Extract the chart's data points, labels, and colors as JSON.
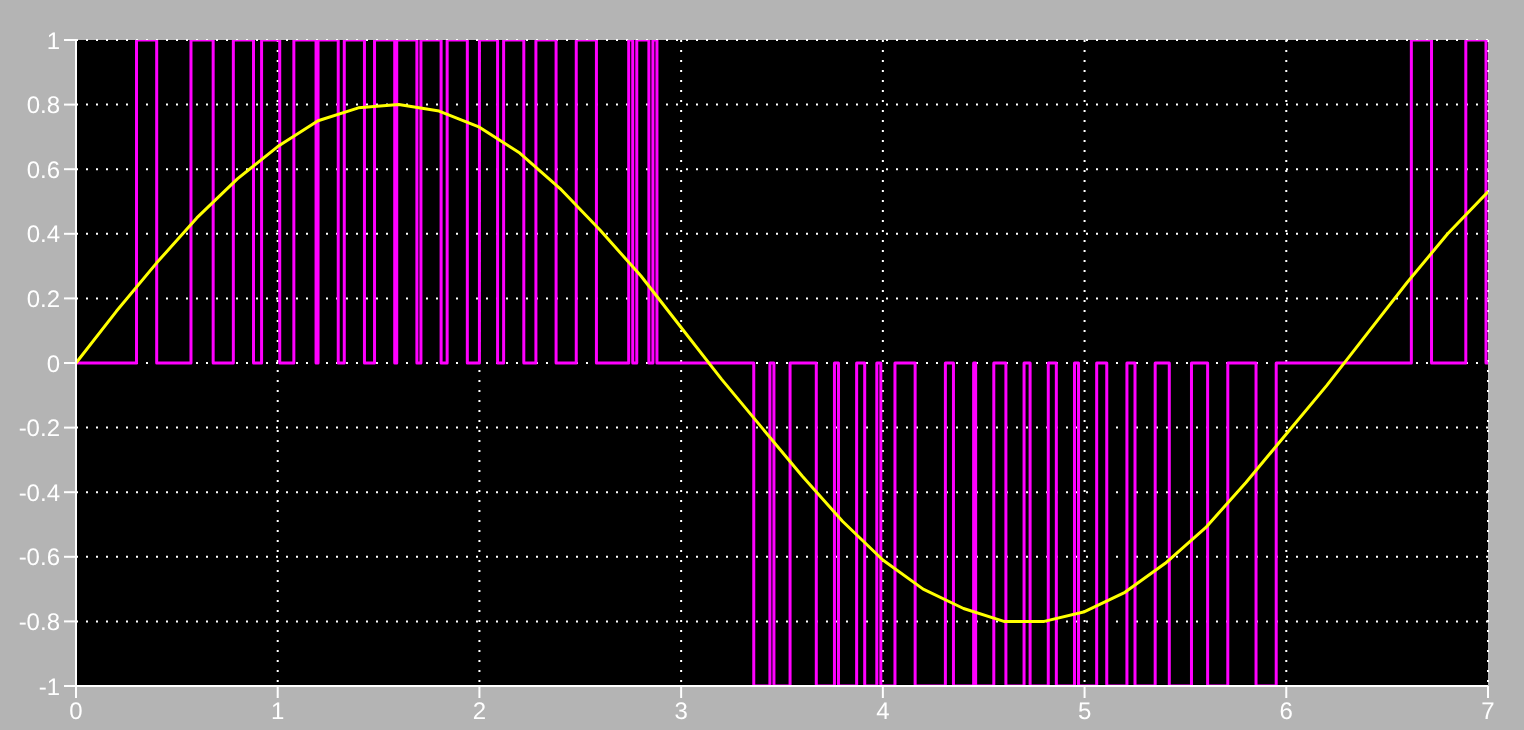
{
  "chart_data": {
    "type": "line",
    "xlim": [
      0,
      7
    ],
    "xticks": [
      0,
      1,
      2,
      3,
      4,
      5,
      6,
      7
    ],
    "ylim": [
      -1,
      1
    ],
    "yticks": [
      -1,
      -0.8,
      -0.6,
      -0.4,
      -0.2,
      0,
      0.2,
      0.4,
      0.6,
      0.8,
      1
    ],
    "grid": true,
    "series": [
      {
        "type": "step",
        "color": "#ff00ff",
        "x": [
          0,
          0.3,
          0.4,
          0.57,
          0.68,
          0.78,
          0.88,
          0.92,
          1.01,
          1.08,
          1.19,
          1.2,
          1.3,
          1.33,
          1.43,
          1.48,
          1.58,
          1.59,
          1.69,
          1.71,
          1.81,
          1.84,
          1.94,
          2.0,
          2.09,
          2.12,
          2.22,
          2.28,
          2.38,
          2.48,
          2.58,
          2.74,
          2.76,
          2.78,
          2.84,
          2.86,
          2.88,
          3.36,
          3.44,
          3.46,
          3.54,
          3.67,
          3.76,
          3.78,
          3.87,
          3.91,
          3.97,
          3.99,
          4.06,
          4.16,
          4.31,
          4.35,
          4.45,
          4.46,
          4.55,
          4.61,
          4.7,
          4.73,
          4.82,
          4.86,
          4.95,
          4.97,
          5.06,
          5.11,
          5.21,
          5.25,
          5.35,
          5.42,
          5.53,
          5.61,
          5.71,
          5.85,
          5.95,
          6.62,
          6.72,
          6.89,
          6.99,
          7
        ],
        "values": [
          0,
          1,
          0,
          1,
          0,
          1,
          0,
          1,
          0,
          1,
          0,
          1,
          0,
          1,
          0,
          1,
          0,
          1,
          0,
          1,
          0,
          1,
          0,
          1,
          0,
          1,
          0,
          1,
          0,
          1,
          0,
          1,
          0,
          1,
          0,
          1,
          0,
          -1,
          0,
          -1,
          0,
          -1,
          0,
          -1,
          0,
          -1,
          0,
          -1,
          0,
          -1,
          0,
          -1,
          0,
          -1,
          0,
          -1,
          0,
          -1,
          0,
          -1,
          0,
          -1,
          0,
          -1,
          0,
          -1,
          0,
          -1,
          0,
          -1,
          0,
          -1,
          0,
          1,
          0,
          1,
          0,
          0
        ]
      },
      {
        "type": "line",
        "color": "#ffff00",
        "x": [
          0,
          0.2,
          0.4,
          0.6,
          0.8,
          1,
          1.2,
          1.4,
          1.6,
          1.8,
          2,
          2.2,
          2.4,
          2.6,
          2.8,
          3,
          3.2,
          3.4,
          3.6,
          3.8,
          4,
          4.2,
          4.4,
          4.6,
          4.8,
          5,
          5.2,
          5.4,
          5.6,
          5.8,
          6,
          6.2,
          6.4,
          6.6,
          6.8,
          7
        ],
        "values": [
          0,
          0.16,
          0.31,
          0.45,
          0.57,
          0.67,
          0.75,
          0.79,
          0.8,
          0.78,
          0.73,
          0.65,
          0.54,
          0.41,
          0.27,
          0.11,
          -0.05,
          -0.2,
          -0.35,
          -0.49,
          -0.61,
          -0.7,
          -0.76,
          -0.8,
          -0.8,
          -0.77,
          -0.71,
          -0.62,
          -0.51,
          -0.37,
          -0.22,
          -0.07,
          0.09,
          0.25,
          0.4,
          0.53
        ]
      }
    ]
  }
}
